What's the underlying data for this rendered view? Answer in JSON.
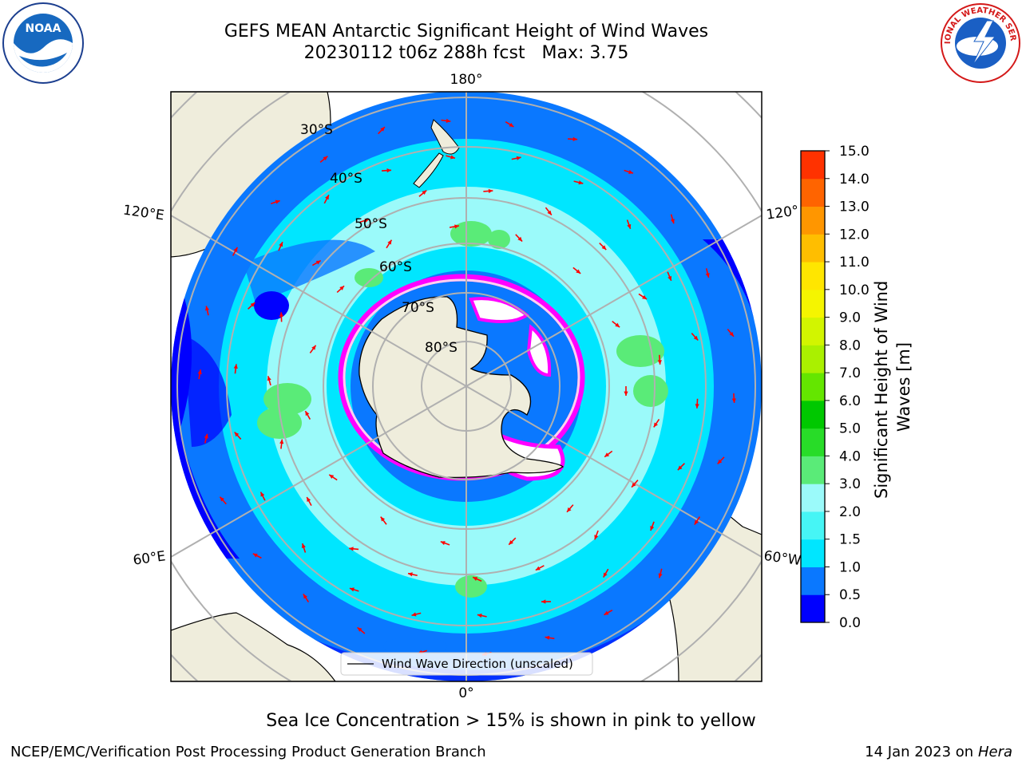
{
  "title": {
    "line1": "GEFS MEAN Antarctic Significant Height of Wind Waves",
    "line2": "20230112 t06z 288h fcst   Max: 3.75"
  },
  "logos": {
    "left": {
      "icon": "noaa-logo",
      "text": "NOAA"
    },
    "right": {
      "icon": "national-weather-service-logo",
      "text": "NATIONAL WEATHER SERVICE"
    }
  },
  "map": {
    "projection": "south-polar-stereographic",
    "longitude_labels": [
      "180°",
      "120°E",
      "120°",
      "60°E",
      "60°W",
      "0°"
    ],
    "latitude_labels": [
      "30°S",
      "40°S",
      "50°S",
      "60°S",
      "70°S",
      "80°S"
    ],
    "legend_label": "Wind Wave Direction (unscaled)",
    "colors": {
      "land": "#efeddc",
      "ocean_low": "#0055ff",
      "sea_ice": "#ff00ff",
      "arrow": "#ff0000",
      "grid": "#b0b0b0"
    }
  },
  "colorbar": {
    "label": "Significant Height of Wind Waves [m]",
    "ticks": [
      "0.0",
      "0.5",
      "1.0",
      "1.5",
      "2.0",
      "3.0",
      "4.0",
      "5.0",
      "6.0",
      "7.0",
      "8.0",
      "9.0",
      "10.0",
      "11.0",
      "12.0",
      "13.0",
      "14.0",
      "15.0"
    ],
    "colors": [
      "#0000ff",
      "#0a78ff",
      "#00e6ff",
      "#46f5f5",
      "#9bfafa",
      "#5aeb78",
      "#28dc28",
      "#00c800",
      "#64e600",
      "#aaf000",
      "#d2f500",
      "#f5f500",
      "#ffe600",
      "#ffbe00",
      "#ff9600",
      "#ff6400",
      "#ff3200"
    ]
  },
  "footer": {
    "note": "Sea Ice Concentration > 15% is shown in pink to yellow",
    "left": "NCEP/EMC/Verification Post Processing Product Generation Branch",
    "right_prefix": "14 Jan 2023 on ",
    "right_machine": "Hera"
  }
}
